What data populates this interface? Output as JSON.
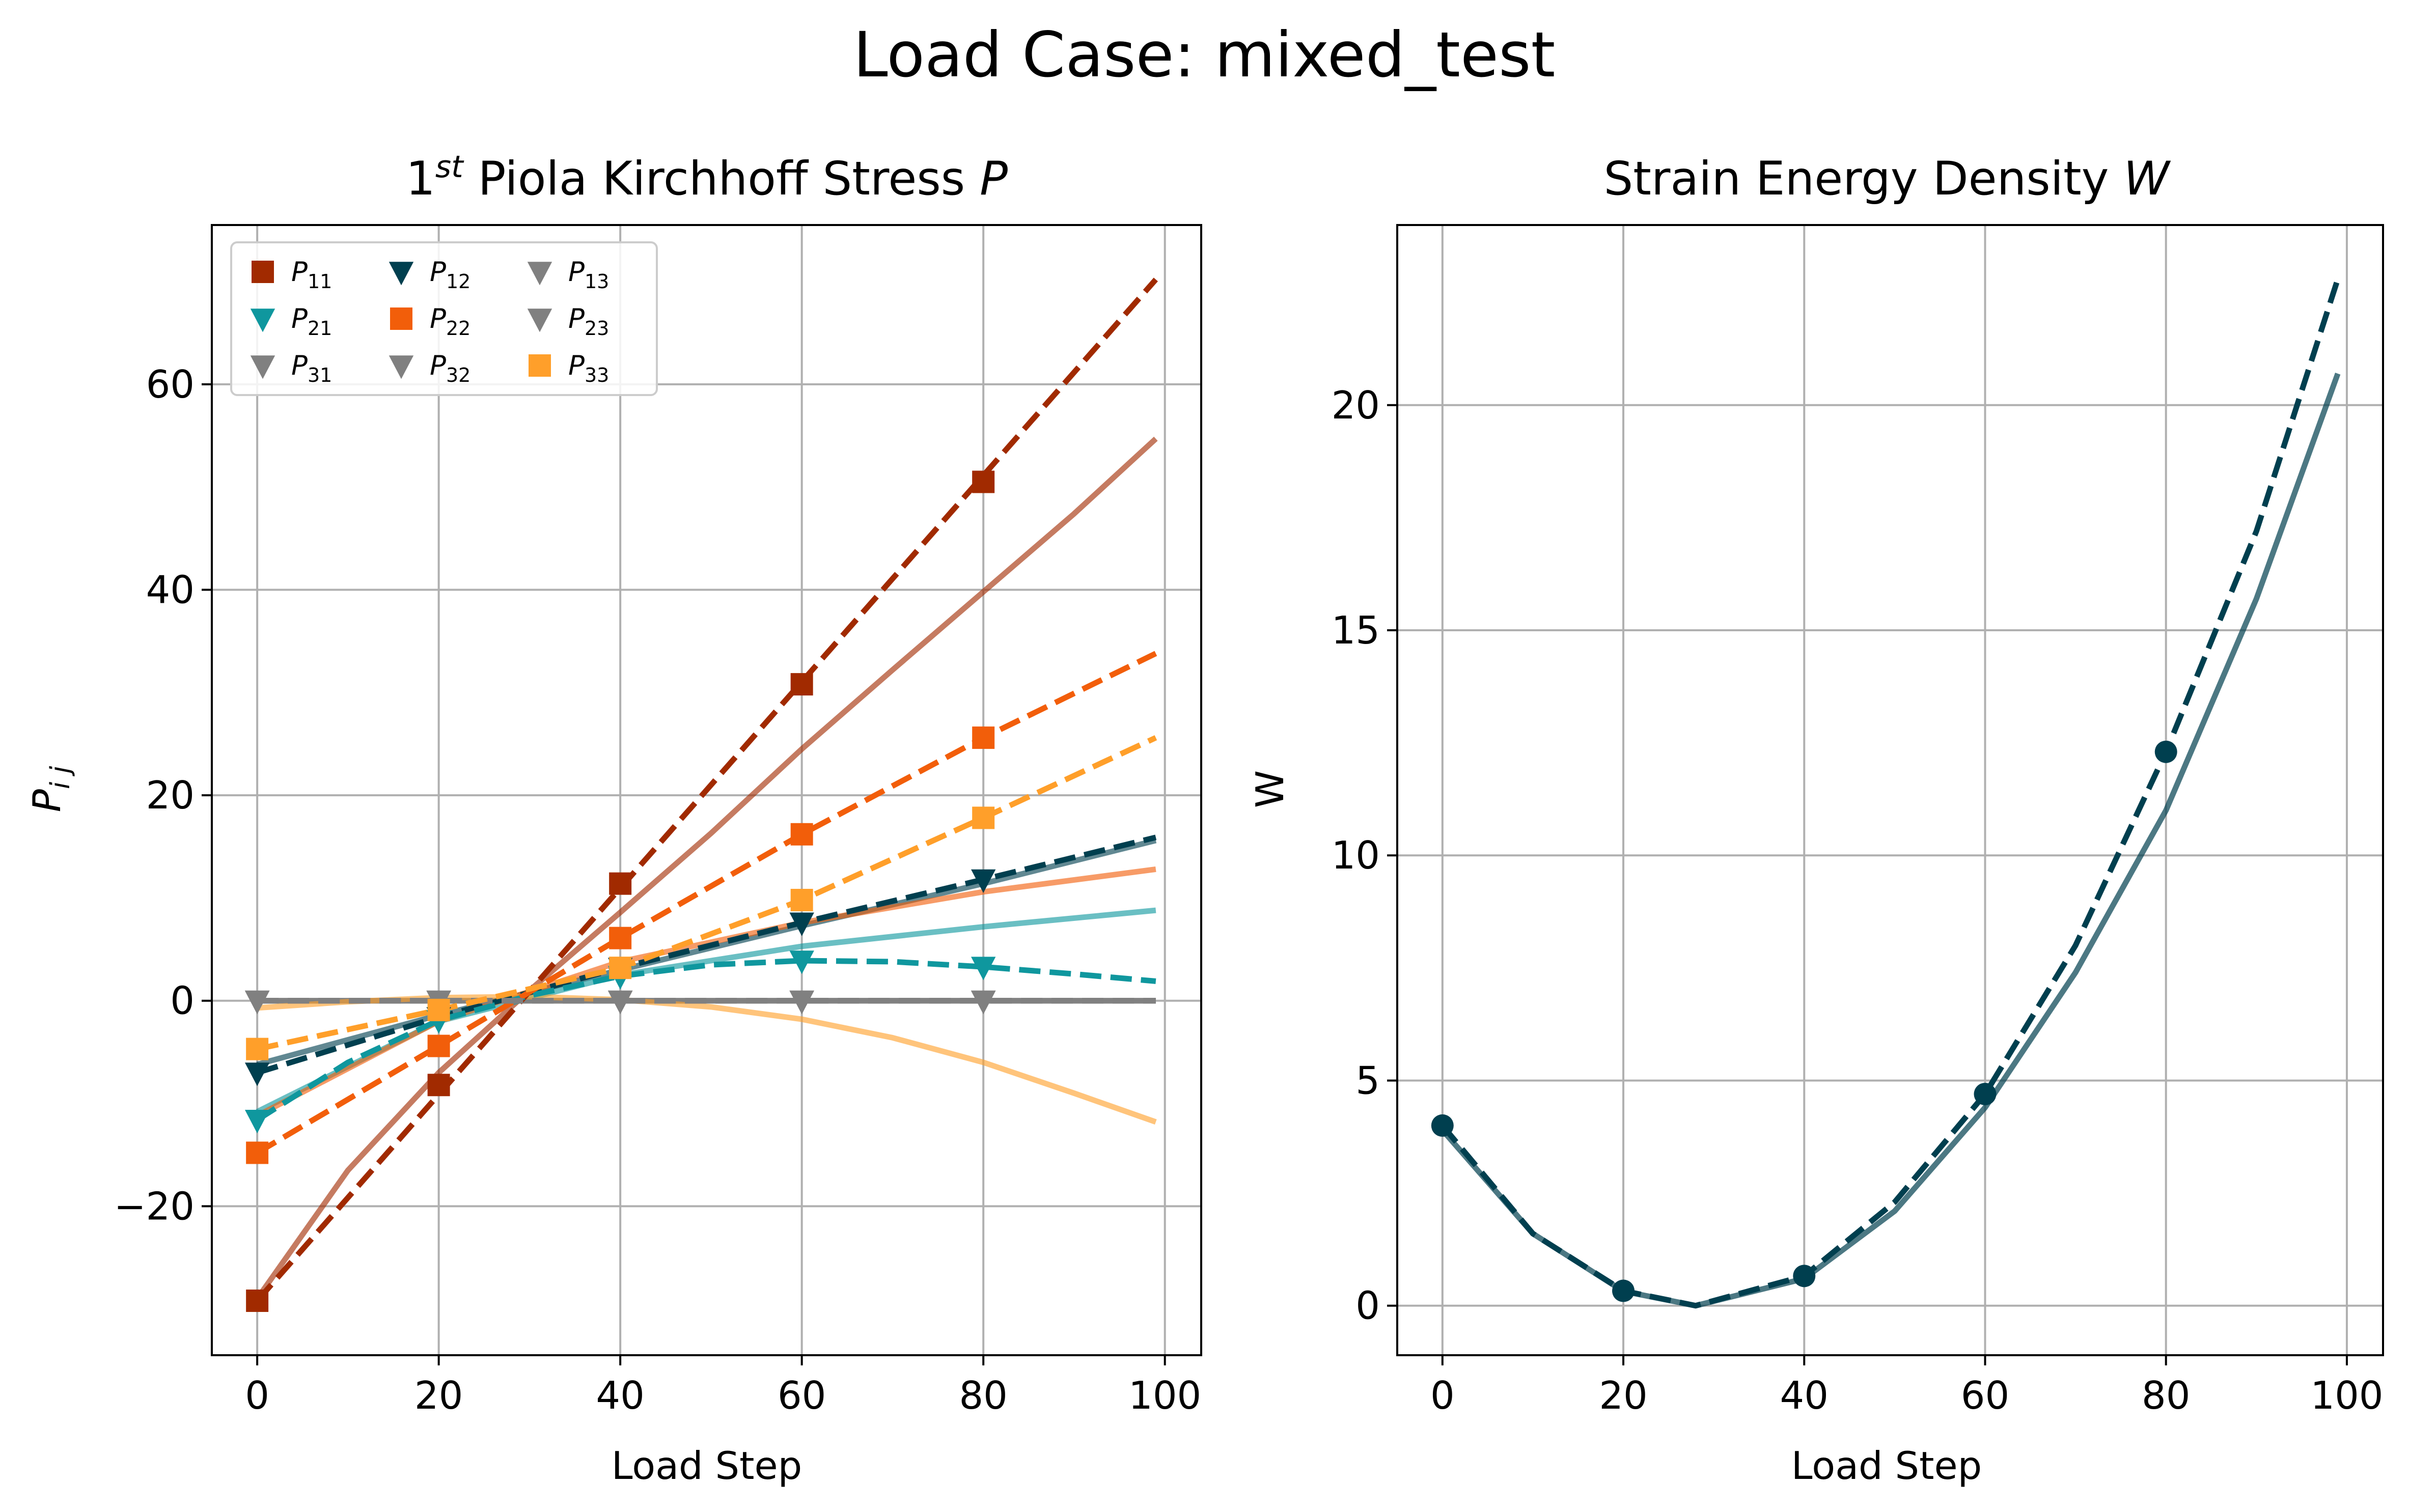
{
  "suptitle": "Load Case: mixed_test",
  "colors": {
    "P11": "#a12a00",
    "P12": "#003f4f",
    "P13": "#808080",
    "P21": "#0f979e",
    "P22": "#f25e0a",
    "P23": "#808080",
    "P31": "#808080",
    "P32": "#808080",
    "P33": "#ff9f2a",
    "W": "#003f4f"
  },
  "chart_data": [
    {
      "type": "line",
      "title": "1st Piola Kirchhoff Stress P",
      "title_parts": {
        "lead": "1",
        "sup": "st",
        "mid": " Piola Kirchhoff Stress ",
        "symbol": "P"
      },
      "xlabel": "Load Step",
      "ylabel": "P_ij",
      "ylabel_parts": {
        "base": "P",
        "sub": "i j"
      },
      "xlim": [
        -5,
        104
      ],
      "ylim": [
        -34.5,
        75.5
      ],
      "xticks": [
        0,
        20,
        40,
        60,
        80,
        100
      ],
      "xtick_labels": [
        "0",
        "20",
        "40",
        "60",
        "80",
        "100"
      ],
      "yticks": [
        -20,
        0,
        20,
        40,
        60
      ],
      "ytick_labels": [
        "−20",
        "0",
        "20",
        "40",
        "60"
      ],
      "grid": true,
      "legend_position": "upper-left",
      "legend_columns": 3,
      "marker_x": [
        0,
        20,
        40,
        60,
        80
      ],
      "series": [
        {
          "name": "P11",
          "label_base": "P",
          "label_sub": "11",
          "marker": "square",
          "color": "#a12a00",
          "reference_x": [
            0,
            99
          ],
          "reference_y": [
            -29.2,
            70.2
          ],
          "model_x": [
            0,
            10,
            20,
            30,
            40,
            50,
            60,
            70,
            80,
            90,
            99
          ],
          "model_y": [
            -29.0,
            -16.5,
            -7.0,
            1.0,
            8.6,
            16.3,
            24.5,
            32.2,
            39.8,
            47.4,
            54.7
          ],
          "markers": [
            -29.2,
            -8.2,
            11.4,
            30.8,
            50.5
          ]
        },
        {
          "name": "P12",
          "label_base": "P",
          "label_sub": "12",
          "marker": "triangle-down",
          "color": "#003f4f",
          "reference_x": [
            0,
            20,
            40,
            60,
            80,
            99
          ],
          "reference_y": [
            -7.0,
            -1.6,
            3.2,
            7.6,
            11.8,
            15.9
          ],
          "model_x": [
            0,
            20,
            40,
            60,
            80,
            99
          ],
          "model_y": [
            -6.2,
            -1.4,
            3.0,
            7.3,
            11.4,
            15.6
          ],
          "markers": [
            -7.0,
            -1.6,
            3.2,
            7.6,
            11.8
          ]
        },
        {
          "name": "P13",
          "label_base": "P",
          "label_sub": "13",
          "marker": "triangle-down",
          "color": "#808080",
          "reference_x": [
            0,
            99
          ],
          "reference_y": [
            0,
            0
          ],
          "model_x": [
            0,
            99
          ],
          "model_y": [
            0,
            0
          ],
          "markers": [
            0,
            0,
            0,
            0,
            0
          ]
        },
        {
          "name": "P21",
          "label_base": "P",
          "label_sub": "21",
          "marker": "triangle-down",
          "color": "#0f979e",
          "reference_x": [
            0,
            10,
            20,
            30,
            40,
            50,
            60,
            70,
            80,
            90,
            99
          ],
          "reference_y": [
            -11.6,
            -6.0,
            -1.9,
            0.5,
            2.4,
            3.5,
            3.9,
            3.8,
            3.3,
            2.6,
            1.9
          ],
          "model_x": [
            0,
            20,
            40,
            60,
            80,
            99
          ],
          "model_y": [
            -10.8,
            -2.0,
            2.5,
            5.3,
            7.2,
            8.8
          ],
          "markers": [
            -11.6,
            -1.9,
            2.4,
            3.9,
            3.3
          ]
        },
        {
          "name": "P22",
          "label_base": "P",
          "label_sub": "22",
          "marker": "square",
          "color": "#f25e0a",
          "reference_x": [
            0,
            20,
            40,
            60,
            80,
            99
          ],
          "reference_y": [
            -14.8,
            -4.4,
            6.1,
            16.2,
            25.6,
            33.8
          ],
          "model_x": [
            0,
            20,
            40,
            60,
            80,
            99
          ],
          "model_y": [
            -11.2,
            -2.0,
            3.8,
            7.6,
            10.6,
            12.8
          ],
          "markers": [
            -14.8,
            -4.4,
            6.1,
            16.2,
            25.6
          ]
        },
        {
          "name": "P23",
          "label_base": "P",
          "label_sub": "23",
          "marker": "triangle-down",
          "color": "#808080",
          "reference_x": [
            0,
            99
          ],
          "reference_y": [
            0,
            0
          ],
          "model_x": [
            0,
            99
          ],
          "model_y": [
            0,
            0
          ],
          "markers": [
            0,
            0,
            0,
            0,
            0
          ]
        },
        {
          "name": "P31",
          "label_base": "P",
          "label_sub": "31",
          "marker": "triangle-down",
          "color": "#808080",
          "reference_x": [
            0,
            99
          ],
          "reference_y": [
            0,
            0
          ],
          "model_x": [
            0,
            99
          ],
          "model_y": [
            0,
            0
          ],
          "markers": [
            0,
            0,
            0,
            0,
            0
          ]
        },
        {
          "name": "P32",
          "label_base": "P",
          "label_sub": "32",
          "marker": "triangle-down",
          "color": "#808080",
          "reference_x": [
            0,
            99
          ],
          "reference_y": [
            0,
            0
          ],
          "model_x": [
            0,
            99
          ],
          "model_y": [
            0,
            0
          ],
          "markers": [
            0,
            0,
            0,
            0,
            0
          ]
        },
        {
          "name": "P33",
          "label_base": "P",
          "label_sub": "33",
          "marker": "square",
          "color": "#ff9f2a",
          "reference_x": [
            0,
            20,
            40,
            60,
            80,
            99
          ],
          "reference_y": [
            -4.7,
            -0.9,
            3.2,
            9.8,
            17.8,
            25.6
          ],
          "model_x": [
            0,
            10,
            20,
            30,
            40,
            50,
            60,
            70,
            80,
            90,
            99
          ],
          "model_y": [
            -0.7,
            -0.1,
            0.3,
            0.4,
            0.1,
            -0.6,
            -1.8,
            -3.6,
            -6.0,
            -9.0,
            -11.8
          ],
          "markers": [
            -4.7,
            -0.9,
            3.2,
            9.8,
            17.8
          ]
        }
      ]
    },
    {
      "type": "line",
      "title": "Strain Energy Density W",
      "title_parts": {
        "lead": "Strain Energy Density ",
        "symbol": "W"
      },
      "xlabel": "Load Step",
      "ylabel": "W",
      "xlim": [
        -5,
        104
      ],
      "ylim": [
        -1.1,
        24.0
      ],
      "xticks": [
        0,
        20,
        40,
        60,
        80,
        100
      ],
      "xtick_labels": [
        "0",
        "20",
        "40",
        "60",
        "80",
        "100"
      ],
      "yticks": [
        0,
        5,
        10,
        15,
        20
      ],
      "ytick_labels": [
        "0",
        "5",
        "10",
        "15",
        "20"
      ],
      "grid": true,
      "marker_x": [
        0,
        20,
        40,
        60,
        80
      ],
      "series": [
        {
          "name": "W",
          "marker": "circle",
          "color": "#003f4f",
          "reference_x": [
            0,
            10,
            20,
            28,
            40,
            50,
            60,
            70,
            80,
            90,
            99
          ],
          "reference_y": [
            4.0,
            1.6,
            0.33,
            0.0,
            0.66,
            2.3,
            4.7,
            8.0,
            12.3,
            17.2,
            22.8
          ],
          "model_x": [
            0,
            10,
            20,
            28,
            40,
            50,
            60,
            70,
            80,
            90,
            99
          ],
          "model_y": [
            3.9,
            1.6,
            0.32,
            0.0,
            0.6,
            2.1,
            4.4,
            7.4,
            11.0,
            15.7,
            20.7
          ],
          "markers": [
            4.0,
            0.33,
            0.66,
            4.7,
            12.3
          ]
        }
      ]
    }
  ]
}
